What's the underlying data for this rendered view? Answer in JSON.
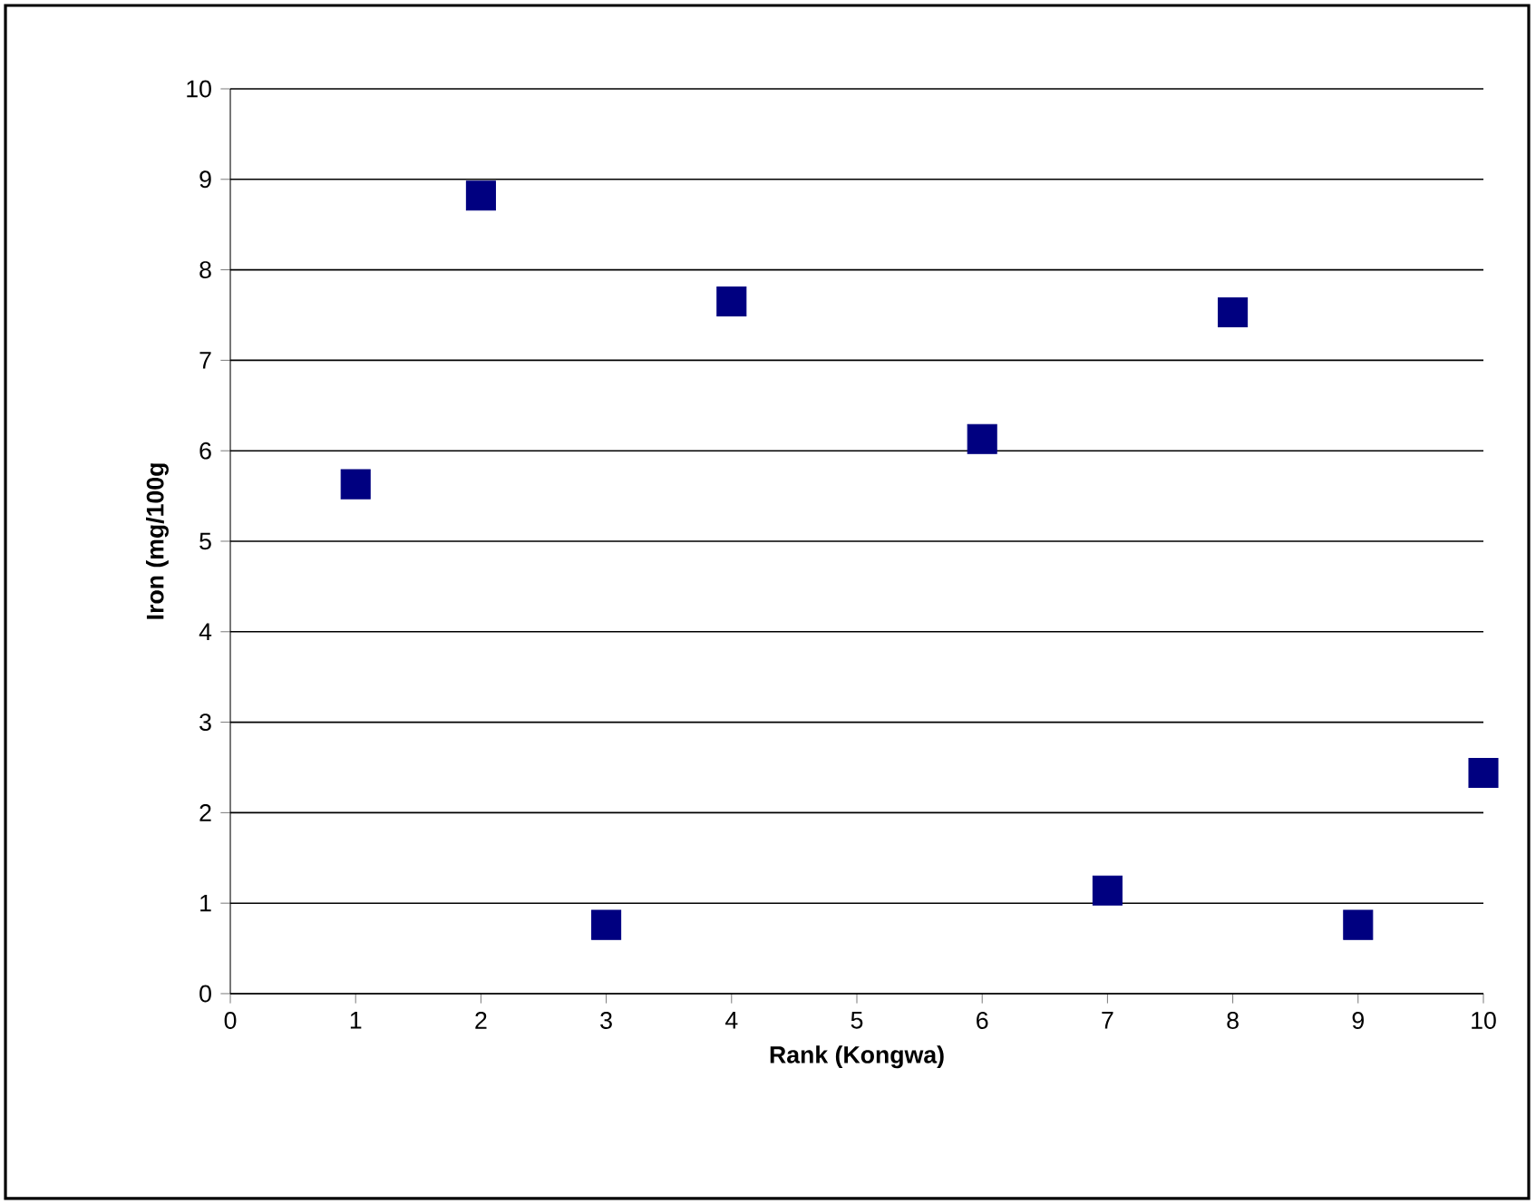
{
  "chart_data": {
    "type": "scatter",
    "xlabel": "Rank (Kongwa)",
    "ylabel": "Iron (mg/100g",
    "x": [
      1,
      2,
      3,
      4,
      6,
      7,
      8,
      9,
      10
    ],
    "series": [
      {
        "color": "#000080",
        "values": [
          5.63,
          8.82,
          0.76,
          7.65,
          6.13,
          1.14,
          7.53,
          0.76,
          2.44
        ]
      }
    ],
    "xlim": [
      0,
      10
    ],
    "ylim": [
      0,
      10
    ],
    "xticks": [
      0,
      1,
      2,
      3,
      4,
      5,
      6,
      7,
      8,
      9,
      10
    ],
    "yticks": [
      0,
      1,
      2,
      3,
      4,
      5,
      6,
      7,
      8,
      9,
      10
    ],
    "grid": "y",
    "marker": "square"
  }
}
